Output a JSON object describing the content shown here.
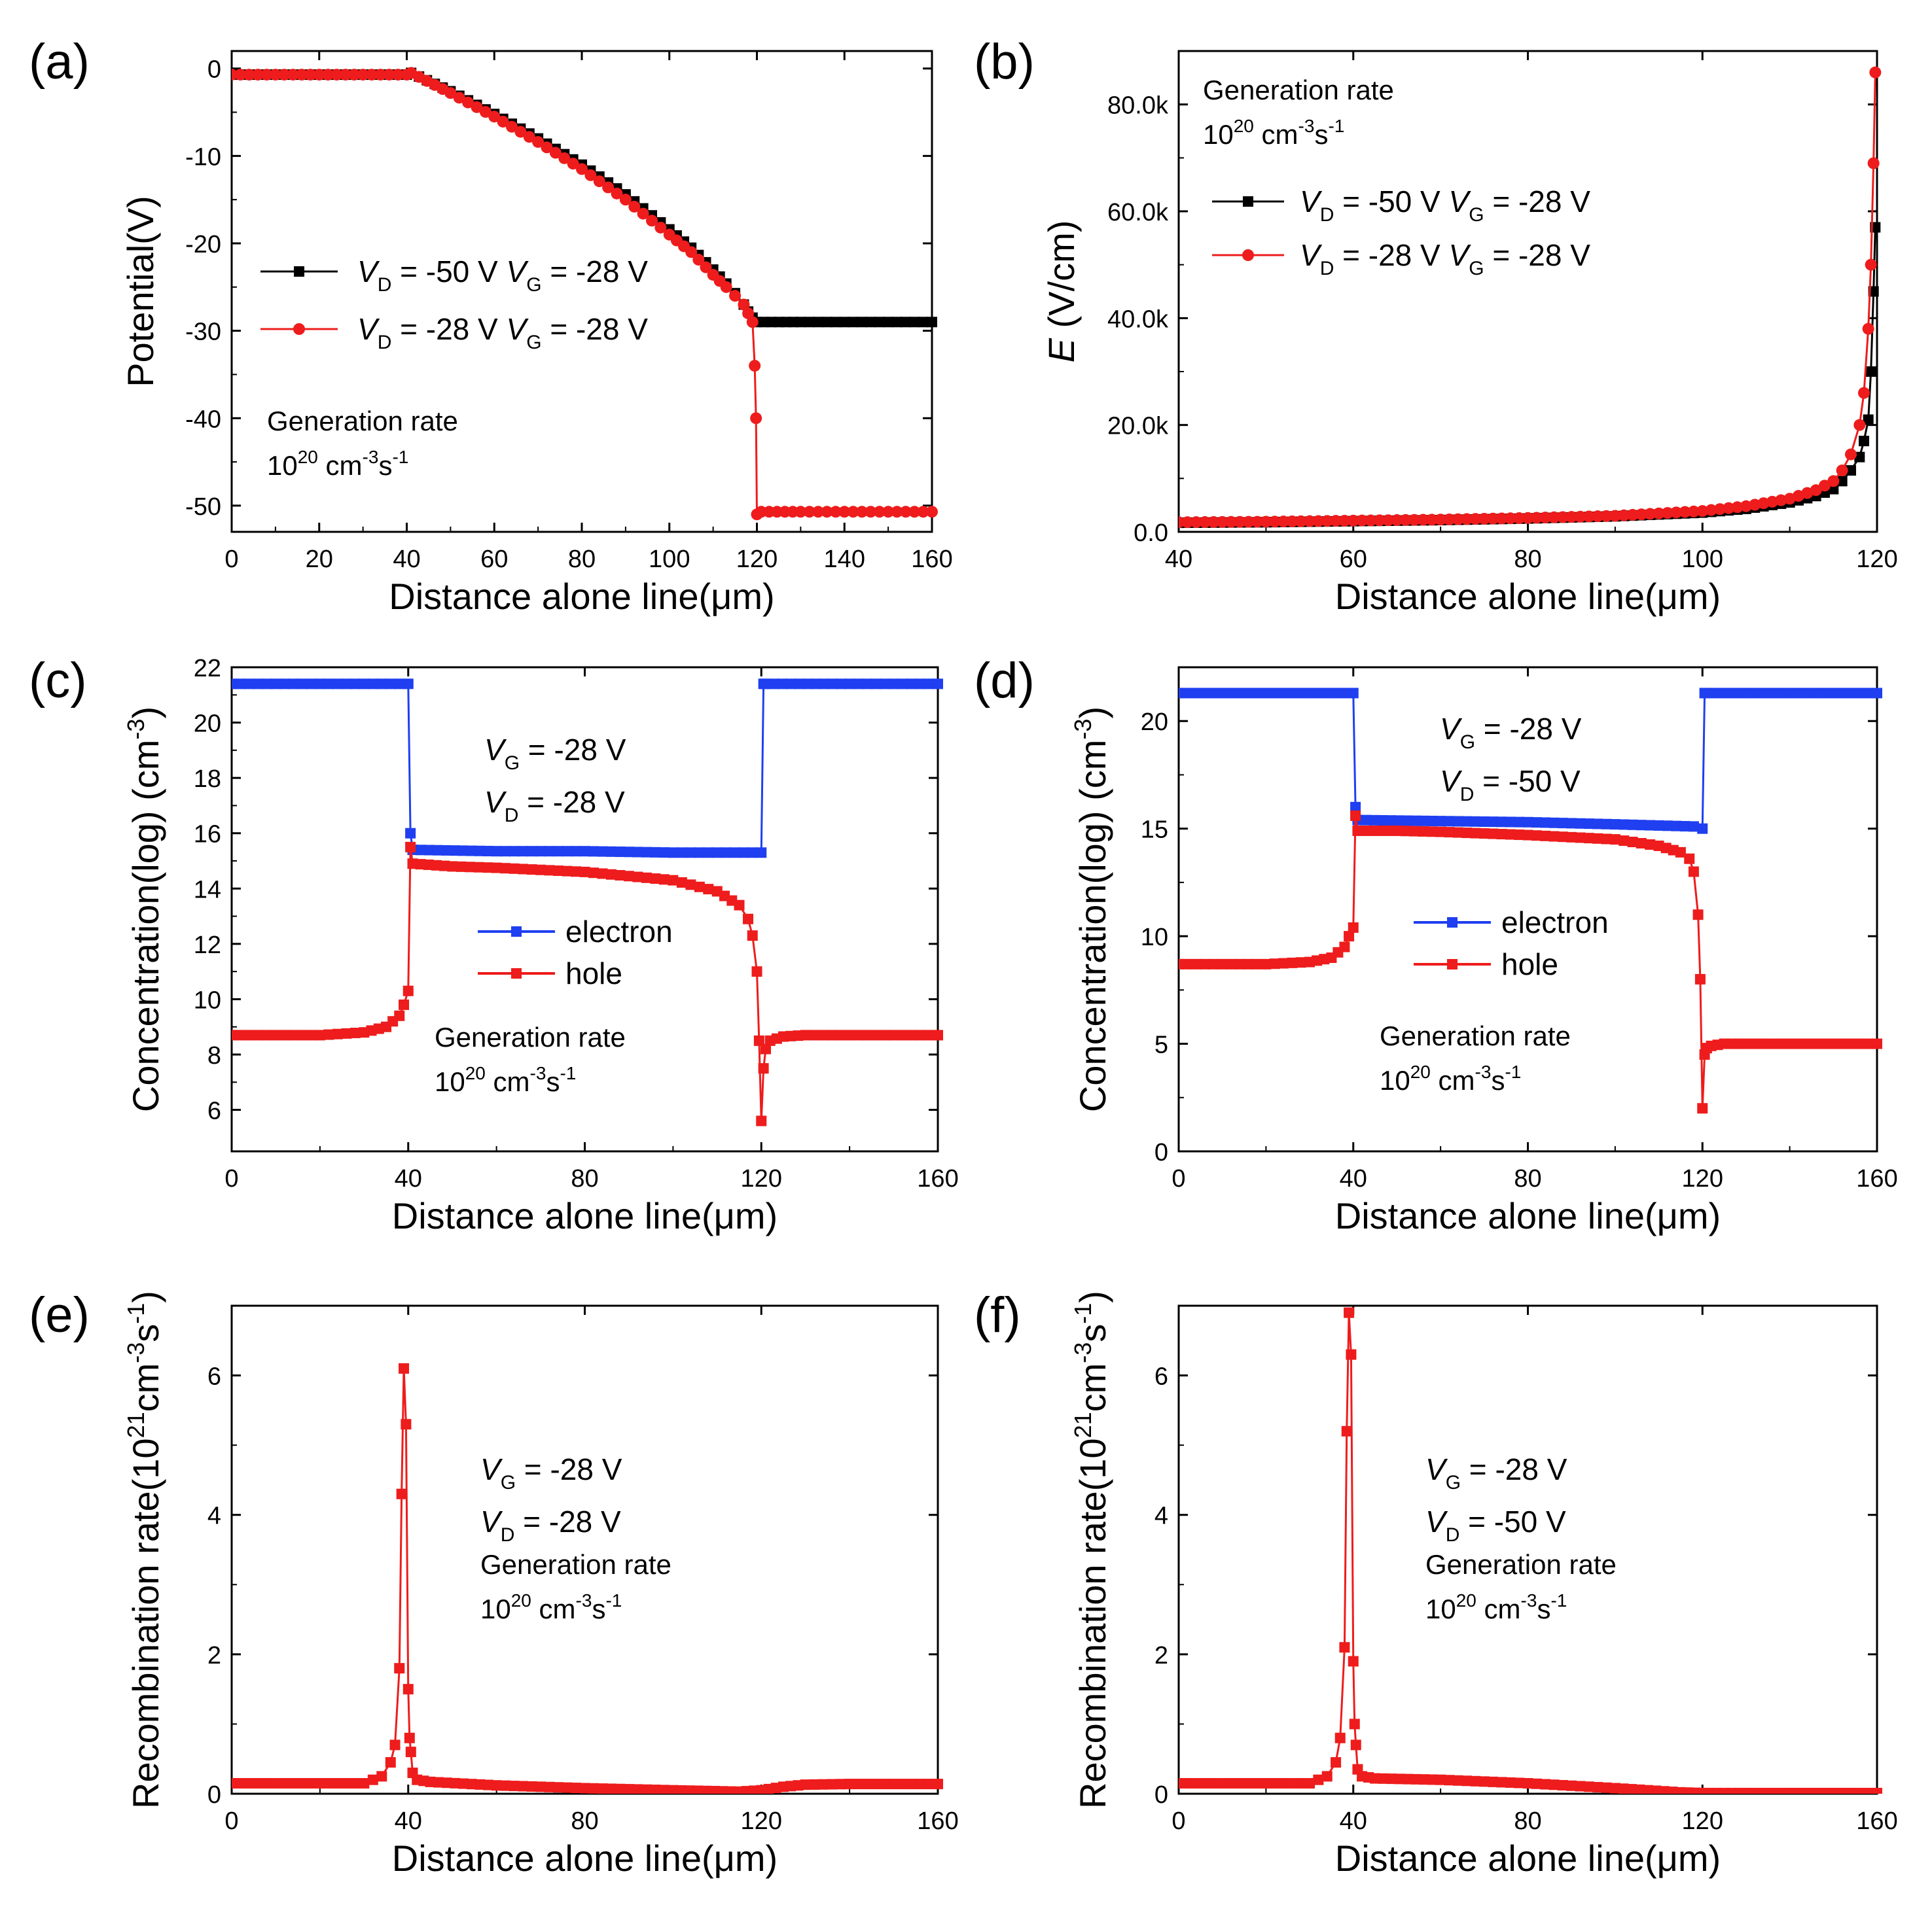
{
  "colors": {
    "black": "#000000",
    "red": "#ee1c1c",
    "blue": "#1f3ff0"
  },
  "chart_data": [
    {
      "id": "a",
      "panel_label": "(a)",
      "type": "line",
      "xlabel": "Distance alone line(μm)",
      "ylabel": "Potential(V)",
      "xlim": [
        0,
        160
      ],
      "ylim": [
        -53,
        2
      ],
      "xticks": [
        0,
        20,
        40,
        60,
        80,
        100,
        120,
        140,
        160
      ],
      "xtick_labels": [
        "0",
        "20",
        "40",
        "60",
        "80",
        "100",
        "120",
        "140",
        "160"
      ],
      "yticks": [
        0,
        -10,
        -20,
        -30,
        -40,
        -50
      ],
      "ytick_labels": [
        "0",
        "-10",
        "-20",
        "-30",
        "-40",
        "-50"
      ],
      "annotations": [
        "Generation rate",
        "10^20 cm^-3s^-1"
      ],
      "series": [
        {
          "name": "V_D = -50 V V_G = -28 V",
          "legend_parts": [
            "V",
            "D",
            " = -50 V ",
            "V",
            "G",
            " = -28 V"
          ],
          "color": "#000000",
          "marker": "square",
          "x": [
            0,
            40,
            41,
            50,
            60,
            70,
            80,
            90,
            100,
            105,
            110,
            113,
            115,
            117,
            118,
            119,
            120,
            125,
            130,
            140,
            150,
            160
          ],
          "y": [
            -0.7,
            -0.7,
            -0.5,
            -2.6,
            -5.2,
            -8,
            -11,
            -14.4,
            -18.4,
            -20.5,
            -23,
            -24.6,
            -25.7,
            -27,
            -27.8,
            -28.5,
            -29,
            -29,
            -29,
            -29,
            -29,
            -29
          ]
        },
        {
          "name": "V_D = -28 V V_G = -28 V",
          "legend_parts": [
            "V",
            "D",
            " = -28 V ",
            "V",
            "G",
            " = -28 V"
          ],
          "color": "#ee1c1c",
          "marker": "circle",
          "x": [
            0,
            40,
            41,
            50,
            60,
            70,
            80,
            90,
            100,
            105,
            110,
            113,
            115,
            117,
            118,
            119,
            119.5,
            119.8,
            120,
            121,
            130,
            140,
            150,
            160
          ],
          "y": [
            -0.7,
            -0.7,
            -0.5,
            -2.8,
            -5.5,
            -8.4,
            -11.5,
            -15,
            -19,
            -21,
            -23.6,
            -25,
            -26,
            -27,
            -28,
            -29,
            -34,
            -40,
            -51,
            -50.7,
            -50.7,
            -50.7,
            -50.7,
            -50.7
          ]
        }
      ],
      "legend_pos": "center-left"
    },
    {
      "id": "b",
      "panel_label": "(b)",
      "type": "line",
      "xlabel": "Distance alone line(μm)",
      "ylabel_parts": [
        "E",
        " (V/cm)"
      ],
      "xlim": [
        40,
        120
      ],
      "ylim": [
        0,
        90000
      ],
      "xticks": [
        40,
        60,
        80,
        100,
        120
      ],
      "xtick_labels": [
        "40",
        "60",
        "80",
        "100",
        "120"
      ],
      "yticks": [
        0,
        20000,
        40000,
        60000,
        80000
      ],
      "ytick_labels": [
        "0.0",
        "20.0k",
        "40.0k",
        "60.0k",
        "80.0k"
      ],
      "annotations": [
        "Generation rate",
        "10^20 cm^-3s^-1"
      ],
      "series": [
        {
          "name": "V_D = -50 V V_G = -28 V",
          "legend_parts": [
            "V",
            "D",
            " = -50 V ",
            "V",
            "G",
            " = -28 V"
          ],
          "color": "#000000",
          "marker": "square",
          "x": [
            40,
            50,
            60,
            70,
            80,
            90,
            100,
            105,
            110,
            113,
            115,
            116,
            117,
            118,
            118.5,
            119,
            119.3,
            119.6,
            119.8
          ],
          "y": [
            1700,
            1800,
            2000,
            2200,
            2500,
            2900,
            3600,
            4300,
            5500,
            6700,
            8000,
            9500,
            11500,
            14000,
            17000,
            21000,
            30000,
            45000,
            57000
          ]
        },
        {
          "name": "V_D = -28 V V_G = -28 V",
          "legend_parts": [
            "V",
            "D",
            " = -28 V ",
            "V",
            "G",
            " = -28 V"
          ],
          "color": "#ee1c1c",
          "marker": "circle",
          "x": [
            40,
            50,
            60,
            70,
            80,
            90,
            100,
            105,
            110,
            113,
            115,
            116,
            117,
            118,
            118.5,
            119,
            119.3,
            119.6,
            119.8
          ],
          "y": [
            1800,
            1900,
            2100,
            2300,
            2600,
            3000,
            3900,
            4800,
            6200,
            7800,
            9500,
            11500,
            14500,
            20000,
            26000,
            38000,
            50000,
            69000,
            86000
          ]
        }
      ],
      "legend_pos": "top-right"
    },
    {
      "id": "c",
      "panel_label": "(c)",
      "type": "line",
      "xlabel": "Distance alone line(μm)",
      "ylabel_parts": [
        "Concentration(log) (cm",
        "-3",
        ")"
      ],
      "xlim": [
        0,
        160
      ],
      "ylim": [
        4.5,
        22
      ],
      "xticks": [
        0,
        40,
        80,
        120,
        160
      ],
      "xtick_labels": [
        "0",
        "40",
        "80",
        "120",
        "160"
      ],
      "yticks": [
        6,
        8,
        10,
        12,
        14,
        16,
        18,
        20,
        22
      ],
      "ytick_labels": [
        "6",
        "8",
        "10",
        "12",
        "14",
        "16",
        "18",
        "20",
        "22"
      ],
      "annotations": [
        "V_G = -28 V",
        "V_D = -28 V",
        "Generation rate",
        "10^20 cm^-3s^-1"
      ],
      "series": [
        {
          "name": "electron",
          "color": "#1f3ff0",
          "marker": "square",
          "x": [
            0,
            40,
            40.5,
            41,
            60,
            80,
            100,
            118,
            120,
            120.5,
            121,
            140,
            160
          ],
          "y": [
            21.4,
            21.4,
            16,
            15.4,
            15.35,
            15.35,
            15.3,
            15.3,
            15.3,
            21.4,
            21.4,
            21.4,
            21.4
          ]
        },
        {
          "name": "hole",
          "color": "#ee1c1c",
          "marker": "square",
          "x": [
            0,
            20,
            30,
            35,
            38,
            39,
            40,
            40.5,
            41,
            50,
            60,
            80,
            100,
            110,
            115,
            117,
            118,
            119,
            119.5,
            120,
            120.5,
            121,
            122,
            125,
            130,
            140,
            160
          ],
          "y": [
            8.7,
            8.7,
            8.8,
            9,
            9.4,
            9.8,
            10.3,
            15.5,
            14.9,
            14.8,
            14.75,
            14.6,
            14.3,
            13.9,
            13.4,
            12.9,
            12.3,
            11,
            8.5,
            5.6,
            7.5,
            8.2,
            8.5,
            8.65,
            8.7,
            8.7,
            8.7
          ]
        }
      ],
      "legend_pos": "center-right"
    },
    {
      "id": "d",
      "panel_label": "(d)",
      "type": "line",
      "xlabel": "Distance alone line(μm)",
      "ylabel_parts": [
        "Concentration(log) (cm",
        "-3",
        ")"
      ],
      "xlim": [
        0,
        160
      ],
      "ylim": [
        0,
        22.5
      ],
      "xticks": [
        0,
        40,
        80,
        120,
        160
      ],
      "xtick_labels": [
        "0",
        "40",
        "80",
        "120",
        "160"
      ],
      "yticks": [
        0,
        5,
        10,
        15,
        20
      ],
      "ytick_labels": [
        "0",
        "5",
        "10",
        "15",
        "20"
      ],
      "annotations": [
        "V_G = -28 V",
        "V_D = -50 V",
        "Generation rate",
        "10^20 cm^-3s^-1"
      ],
      "series": [
        {
          "name": "electron",
          "color": "#1f3ff0",
          "marker": "square",
          "x": [
            0,
            40,
            40.5,
            41,
            60,
            80,
            100,
            118,
            120,
            120.5,
            121,
            140,
            160
          ],
          "y": [
            21.3,
            21.3,
            16,
            15.4,
            15.35,
            15.3,
            15.2,
            15.1,
            15,
            21.3,
            21.3,
            21.3,
            21.3
          ]
        },
        {
          "name": "hole",
          "color": "#ee1c1c",
          "marker": "square",
          "x": [
            0,
            20,
            30,
            35,
            38,
            39,
            40,
            40.5,
            41,
            50,
            60,
            80,
            100,
            110,
            115,
            117,
            118,
            119,
            119.5,
            120,
            120.5,
            121,
            122,
            125,
            130,
            140,
            160
          ],
          "y": [
            8.7,
            8.7,
            8.8,
            9,
            9.5,
            10,
            10.4,
            15.6,
            14.9,
            14.9,
            14.85,
            14.7,
            14.5,
            14.2,
            13.9,
            13.6,
            13,
            11,
            8,
            2,
            4.5,
            4.8,
            4.9,
            5,
            5,
            5,
            5
          ]
        }
      ],
      "legend_pos": "center-right"
    },
    {
      "id": "e",
      "panel_label": "(e)",
      "type": "line",
      "xlabel": "Distance alone line(μm)",
      "ylabel_parts": [
        "Recombination rate(10",
        "21",
        "cm",
        "-3",
        "s",
        "-1",
        ")"
      ],
      "xlim": [
        0,
        160
      ],
      "ylim": [
        0,
        7
      ],
      "xticks": [
        0,
        40,
        80,
        120,
        160
      ],
      "xtick_labels": [
        "0",
        "40",
        "80",
        "120",
        "160"
      ],
      "yticks": [
        0,
        2,
        4,
        6
      ],
      "ytick_labels": [
        "0",
        "2",
        "4",
        "6"
      ],
      "annotations": [
        "V_G = -28 V",
        "V_D = -28 V",
        "Generation rate",
        "10^20 cm^-3s^-1"
      ],
      "series": [
        {
          "name": "recombination",
          "color": "#ee1c1c",
          "marker": "square",
          "x": [
            0,
            20,
            30,
            34,
            36,
            37,
            38,
            38.5,
            39,
            39.5,
            40,
            40.3,
            40.6,
            41,
            42,
            45,
            60,
            80,
            100,
            115,
            120,
            125,
            130,
            140,
            160
          ],
          "y": [
            0.15,
            0.15,
            0.15,
            0.25,
            0.45,
            0.7,
            1.8,
            4.3,
            6.1,
            5.3,
            1.5,
            0.8,
            0.6,
            0.3,
            0.2,
            0.17,
            0.12,
            0.08,
            0.05,
            0.03,
            0.05,
            0.1,
            0.13,
            0.14,
            0.14
          ]
        }
      ],
      "legend_pos": "none"
    },
    {
      "id": "f",
      "panel_label": "(f)",
      "type": "line",
      "xlabel": "Distance alone line(μm)",
      "ylabel_parts": [
        "Recombination rate(10",
        "21",
        "cm",
        "-3",
        "s",
        "-1",
        ")"
      ],
      "xlim": [
        0,
        160
      ],
      "ylim": [
        0,
        7
      ],
      "xticks": [
        0,
        40,
        80,
        120,
        160
      ],
      "xtick_labels": [
        "0",
        "40",
        "80",
        "120",
        "160"
      ],
      "yticks": [
        0,
        2,
        4,
        6
      ],
      "ytick_labels": [
        "0",
        "2",
        "4",
        "6"
      ],
      "annotations": [
        "V_G = -28 V",
        "V_D = -50 V",
        "Generation rate",
        "10^20 cm^-3s^-1"
      ],
      "series": [
        {
          "name": "recombination",
          "color": "#ee1c1c",
          "marker": "square",
          "x": [
            0,
            20,
            30,
            34,
            36,
            37,
            38,
            38.5,
            39,
            39.5,
            40,
            40.3,
            40.6,
            41,
            42,
            45,
            60,
            80,
            100,
            115,
            120,
            125,
            130,
            140,
            160
          ],
          "y": [
            0.15,
            0.15,
            0.15,
            0.25,
            0.45,
            0.8,
            2.1,
            5.2,
            6.9,
            6.3,
            1.9,
            1,
            0.7,
            0.35,
            0.25,
            0.22,
            0.2,
            0.15,
            0.08,
            0.02,
            0.01,
            0.01,
            0.01,
            0.01,
            0.01
          ]
        }
      ],
      "legend_pos": "none"
    }
  ]
}
